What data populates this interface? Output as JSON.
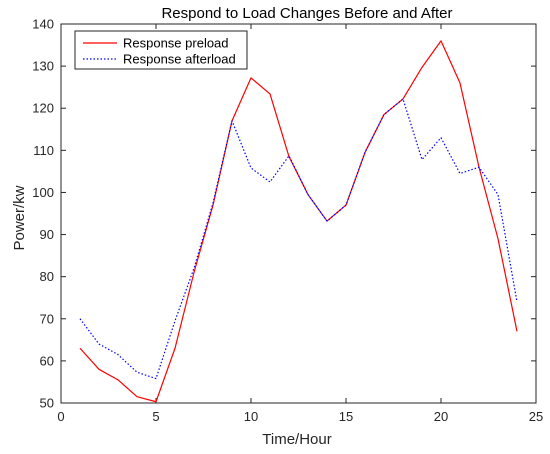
{
  "chart_data": {
    "type": "line",
    "title": "Respond to Load Changes Before and After",
    "xlabel": "Time/Hour",
    "ylabel": "Power/kw",
    "xlim": [
      0,
      25
    ],
    "ylim": [
      50,
      140
    ],
    "xticks": [
      0,
      5,
      10,
      15,
      20,
      25
    ],
    "yticks": [
      50,
      60,
      70,
      80,
      90,
      100,
      110,
      120,
      130,
      140
    ],
    "x": [
      1,
      2,
      3,
      4,
      5,
      6,
      7,
      8,
      9,
      10,
      11,
      12,
      13,
      14,
      15,
      16,
      17,
      18,
      19,
      20,
      21,
      22,
      23,
      24
    ],
    "legend_position": "top-left",
    "grid": false,
    "series": [
      {
        "name": "Response preload",
        "color": "#ff0000",
        "style": "solid",
        "values": [
          63,
          58,
          55.5,
          51.5,
          50.3,
          63,
          81,
          97,
          117,
          127.2,
          123.4,
          108.5,
          99.5,
          93.2,
          97,
          109.5,
          118.5,
          122.2,
          129.7,
          136,
          126,
          106,
          89,
          67
        ]
      },
      {
        "name": "Response afterload",
        "color": "#0000ff",
        "style": "dotted",
        "values": [
          70,
          64,
          61.5,
          57.3,
          55.8,
          69.5,
          82,
          97.5,
          117,
          105.8,
          102.5,
          108.7,
          99.5,
          93.2,
          97,
          109.5,
          118.5,
          122.2,
          107.8,
          113,
          104.5,
          106,
          99.5,
          74
        ]
      }
    ]
  }
}
